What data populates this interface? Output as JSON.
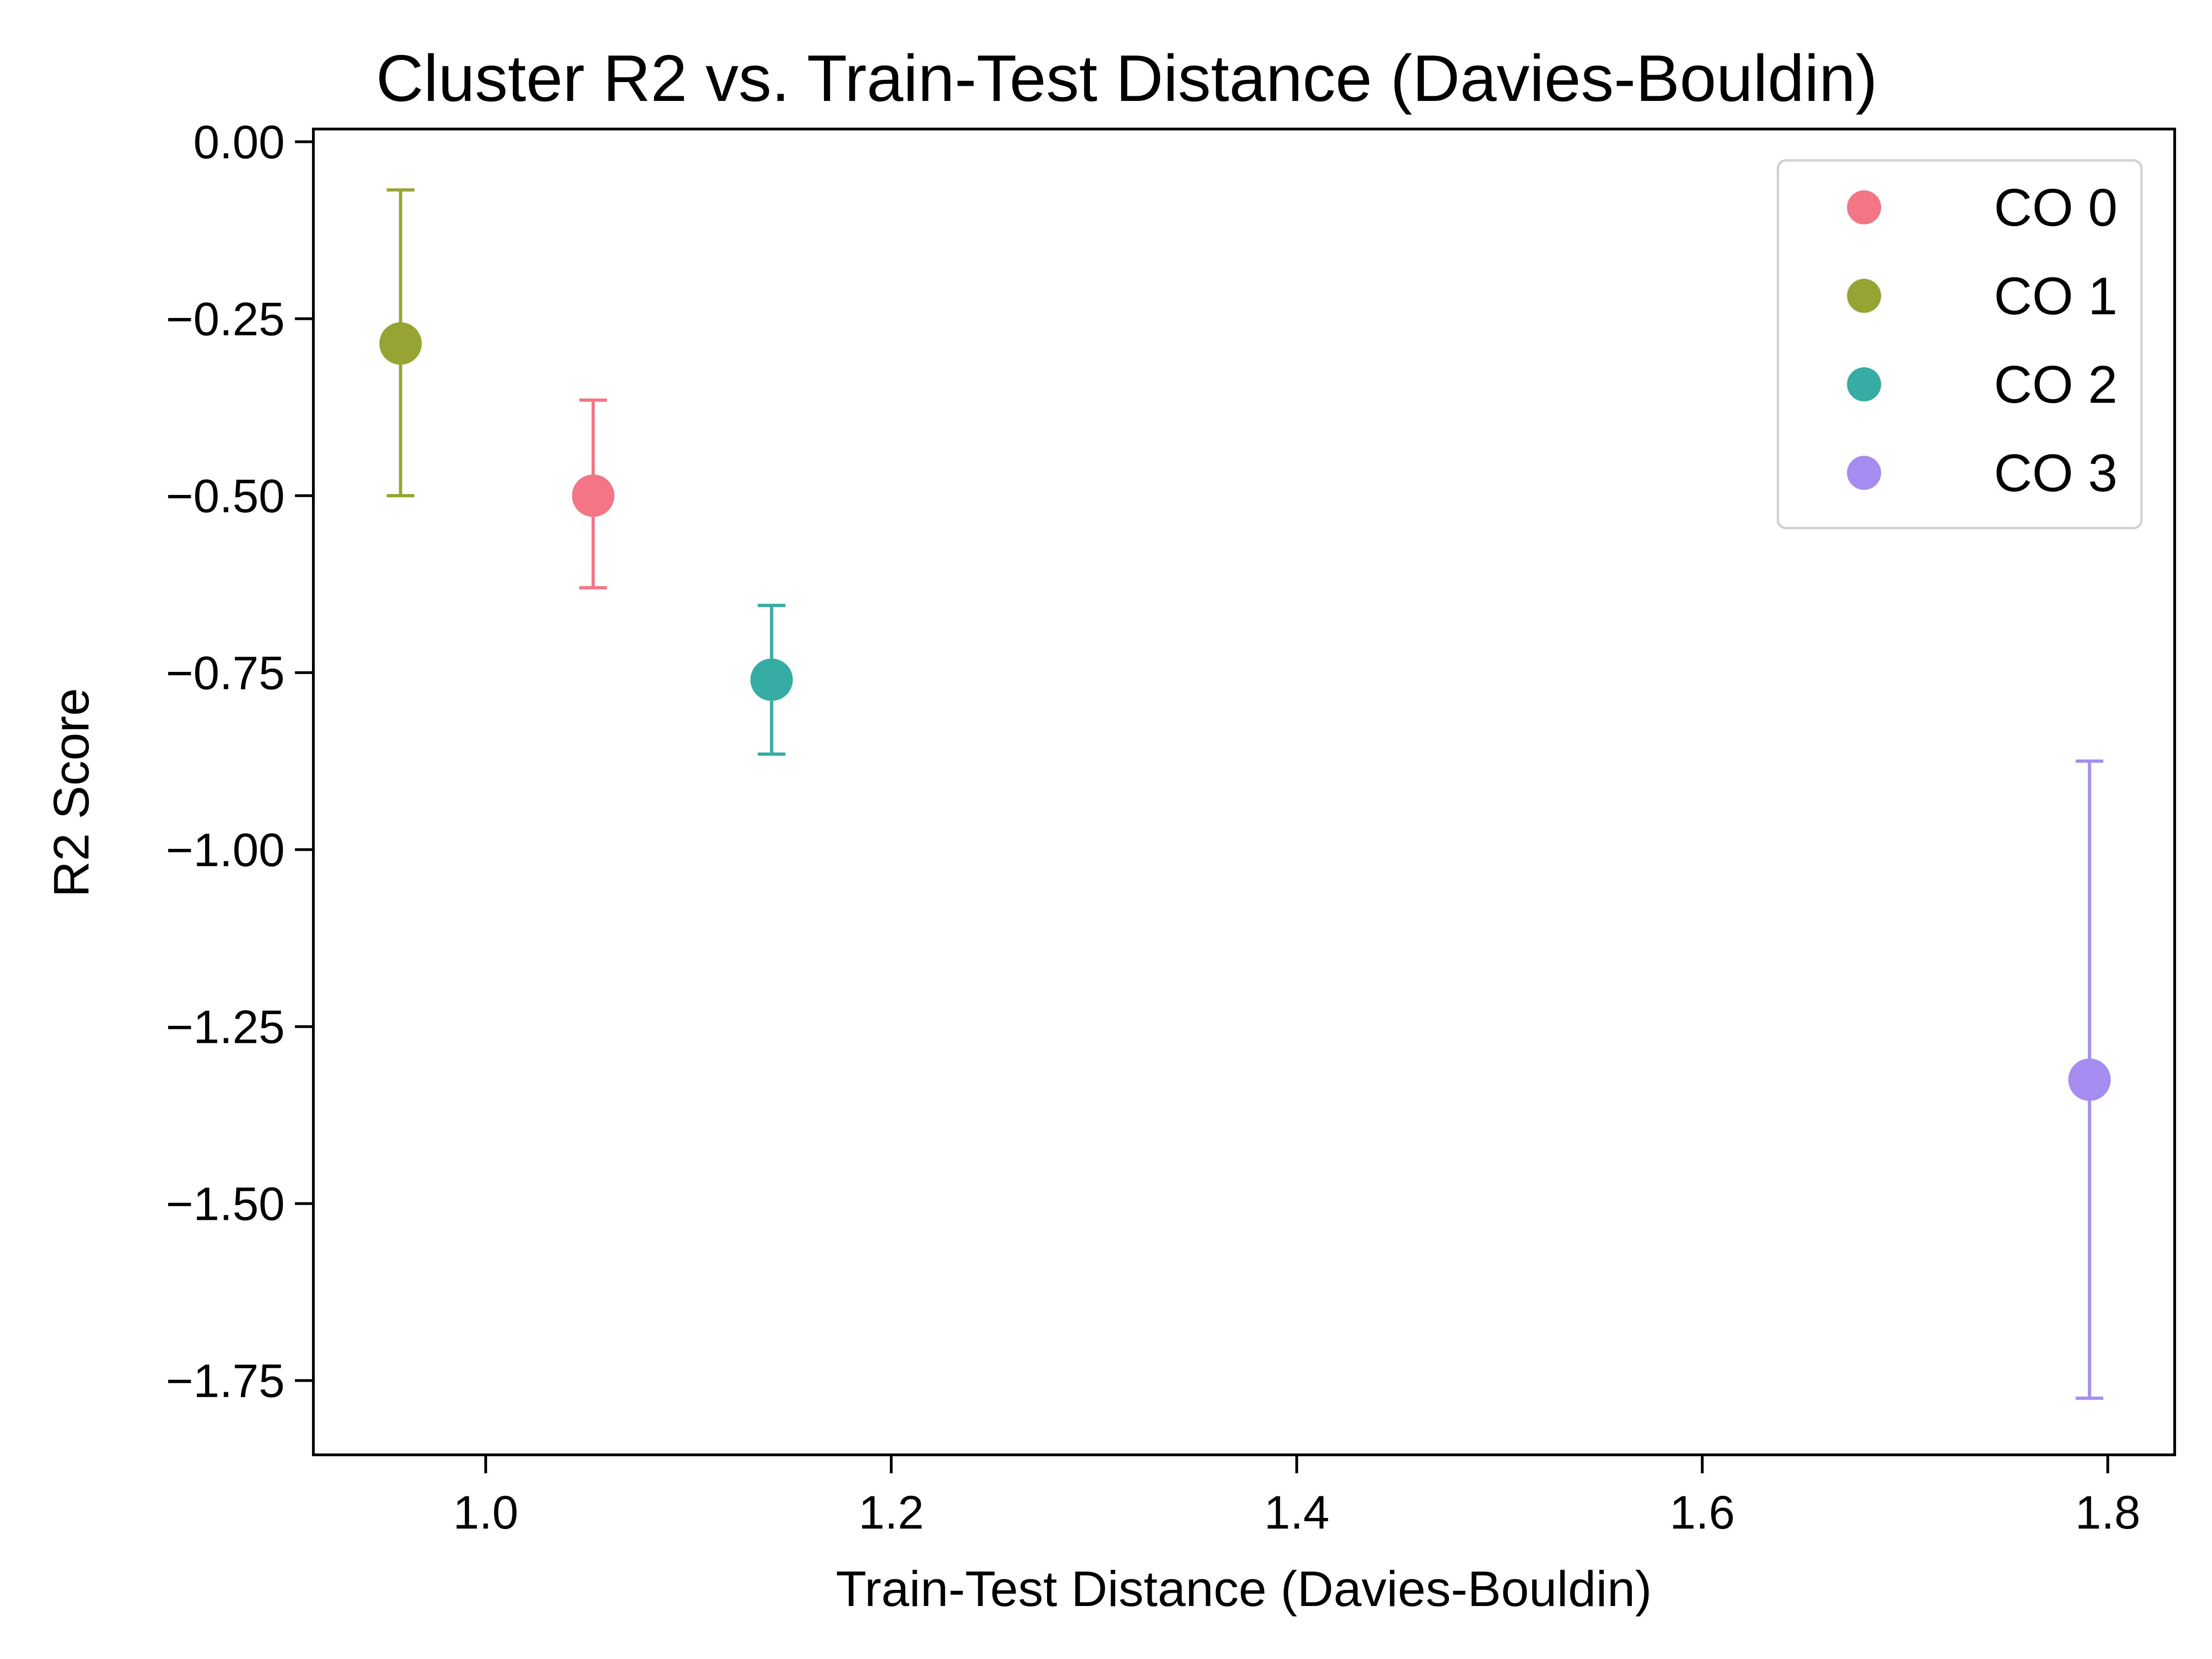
{
  "chart_data": {
    "type": "scatter",
    "title": "Cluster R2 vs. Train-Test Distance (Davies-Bouldin)",
    "xlabel": "Train-Test Distance (Davies-Bouldin)",
    "ylabel": "R2 Score",
    "xlim": [
      0.915,
      1.833
    ],
    "ylim": [
      -1.855,
      0.018
    ],
    "xticks": [
      1.0,
      1.2,
      1.4,
      1.6,
      1.8
    ],
    "xtick_labels": [
      "1.0",
      "1.2",
      "1.4",
      "1.6",
      "1.8"
    ],
    "yticks": [
      0.0,
      -0.25,
      -0.5,
      -0.75,
      -1.0,
      -1.25,
      -1.5,
      -1.75
    ],
    "ytick_labels": [
      "0.00",
      "−0.25",
      "−0.50",
      "−0.75",
      "−1.00",
      "−1.25",
      "−1.50",
      "−1.75"
    ],
    "grid": false,
    "legend_position": "top-right",
    "series": [
      {
        "name": "CO 0",
        "color": "#f47586",
        "points": [
          {
            "x": 1.053,
            "y": -0.5,
            "y_err_low": -0.63,
            "y_err_high": -0.365
          }
        ]
      },
      {
        "name": "CO 1",
        "color": "#97a434",
        "points": [
          {
            "x": 0.958,
            "y": -0.285,
            "y_err_low": -0.5,
            "y_err_high": -0.068
          }
        ]
      },
      {
        "name": "CO 2",
        "color": "#36ada4",
        "points": [
          {
            "x": 1.141,
            "y": -0.76,
            "y_err_low": -0.865,
            "y_err_high": -0.655
          }
        ]
      },
      {
        "name": "CO 3",
        "color": "#a48cf0",
        "points": [
          {
            "x": 1.791,
            "y": -1.325,
            "y_err_low": -1.775,
            "y_err_high": -0.875
          }
        ]
      }
    ]
  }
}
